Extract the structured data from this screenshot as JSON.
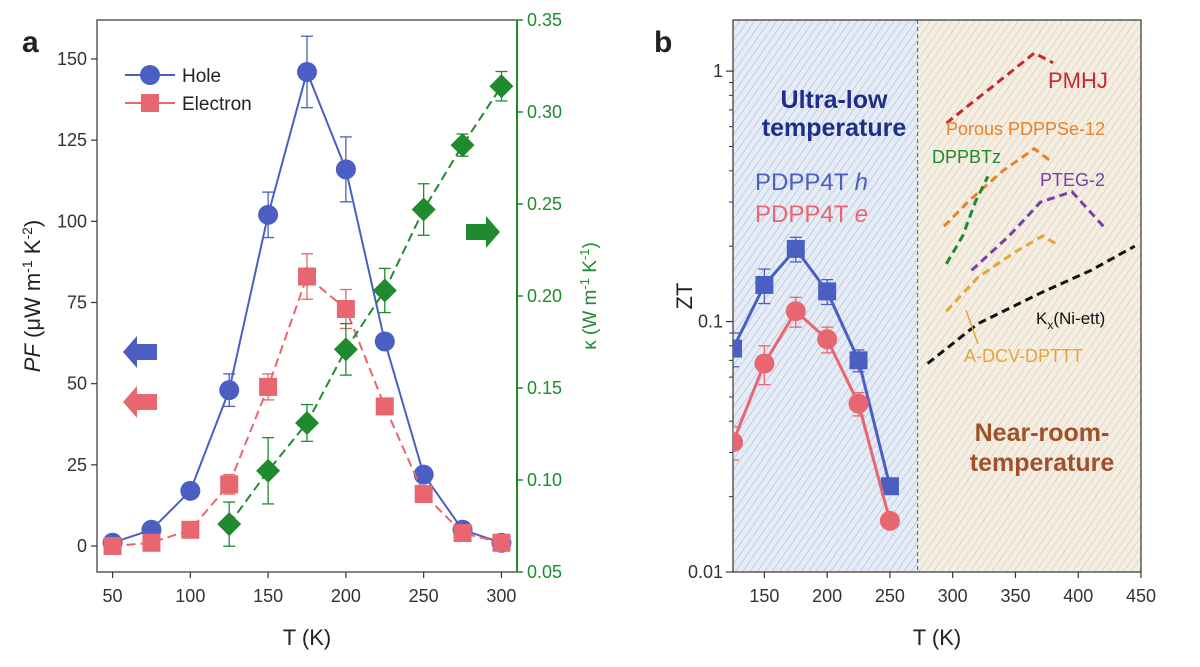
{
  "chart_data": [
    {
      "panel": "a",
      "type": "line",
      "xlabel": "T (K)",
      "xlim": [
        40,
        310
      ],
      "xticks": [
        50,
        100,
        150,
        200,
        250,
        300
      ],
      "y_left": {
        "label_parts": [
          "PF",
          " (μW m",
          "-1",
          " K",
          "-2",
          ")"
        ],
        "ylim": [
          -8,
          162
        ],
        "ticks": [
          0,
          25,
          50,
          75,
          100,
          125,
          150
        ]
      },
      "y_right": {
        "label_parts": [
          "κ (W m",
          "-1",
          " K",
          "-1",
          ")"
        ],
        "ylim": [
          0.05,
          0.35
        ],
        "ticks": [
          "0.05",
          "0.10",
          "0.15",
          "0.20",
          "0.25",
          "0.30",
          "0.35"
        ]
      },
      "series": [
        {
          "name": "Hole",
          "axis": "left",
          "color": "#4A5FC1",
          "marker": "circle",
          "x": [
            50,
            75,
            100,
            125,
            150,
            175,
            200,
            225,
            250,
            275,
            300
          ],
          "y": [
            1,
            5,
            17,
            48,
            102,
            146,
            116,
            63,
            22,
            5,
            1
          ],
          "err": [
            0,
            0,
            0,
            5,
            7,
            11,
            10,
            0,
            0,
            0,
            0
          ]
        },
        {
          "name": "Electron",
          "axis": "left",
          "color": "#E8666F",
          "marker": "square",
          "x": [
            50,
            75,
            100,
            125,
            150,
            175,
            200,
            225,
            250,
            275,
            300
          ],
          "y": [
            0,
            1,
            5,
            19,
            49,
            83,
            73,
            43,
            16,
            4,
            1
          ],
          "err": [
            0,
            0,
            0,
            3,
            4,
            7,
            6,
            0,
            0,
            0,
            0
          ]
        },
        {
          "name": "κ",
          "axis": "right",
          "color": "#1F8A2E",
          "marker": "diamond",
          "x": [
            125,
            150,
            175,
            200,
            225,
            250,
            275,
            300
          ],
          "y": [
            0.076,
            0.105,
            0.131,
            0.171,
            0.203,
            0.247,
            0.282,
            0.314
          ],
          "err": [
            0.012,
            0.018,
            0.01,
            0.014,
            0.012,
            0.014,
            0.006,
            0.008
          ]
        }
      ],
      "legend": {
        "placement": "top-left",
        "entries": [
          "Hole",
          "Electron"
        ]
      },
      "annotations": [
        {
          "kind": "arrow-left",
          "color": "#4A5FC1",
          "points_to": "left axis"
        },
        {
          "kind": "arrow-left",
          "color": "#E8666F",
          "points_to": "left axis"
        },
        {
          "kind": "arrow-right",
          "color": "#1F8A2E",
          "points_to": "right axis"
        }
      ]
    },
    {
      "panel": "b",
      "type": "line",
      "xlabel": "T (K)",
      "ylabel": "ZT",
      "yscale": "log",
      "xlim": [
        125,
        450
      ],
      "ylim": [
        0.01,
        1.6
      ],
      "xticks": [
        150,
        200,
        250,
        300,
        350,
        400,
        450
      ],
      "yticks": [
        {
          "v": 0.01,
          "label": "0.01"
        },
        {
          "v": 0.1,
          "label": "0.1"
        },
        {
          "v": 1,
          "label": "1"
        }
      ],
      "regions": [
        {
          "label_lines": [
            "Ultra-low",
            "temperature"
          ],
          "x_range": [
            125,
            272
          ],
          "color": "#1F2E8A"
        },
        {
          "label_lines": [
            "Near-room-",
            "temperature"
          ],
          "x_range": [
            272,
            450
          ],
          "color": "#A0502A"
        }
      ],
      "series": [
        {
          "name": "PDPP4T h",
          "name_main": "PDPP4T ",
          "name_italic": "h",
          "color": "#4A5FC1",
          "marker": "square",
          "x": [
            125,
            150,
            175,
            200,
            225,
            250
          ],
          "y": [
            0.078,
            0.14,
            0.195,
            0.132,
            0.07,
            0.022
          ],
          "err": [
            0.012,
            0.022,
            0.022,
            0.015,
            0.007,
            0
          ]
        },
        {
          "name": "PDPP4T e",
          "name_main": "PDPP4T ",
          "name_italic": "e",
          "color": "#E8666F",
          "marker": "circle",
          "x": [
            125,
            150,
            175,
            200,
            225,
            250
          ],
          "y": [
            0.033,
            0.068,
            0.11,
            0.085,
            0.047,
            0.016
          ],
          "err": [
            0.005,
            0.012,
            0.015,
            0.01,
            0.005,
            0
          ]
        }
      ],
      "literature": [
        {
          "name": "PMHJ",
          "color": "#C8282E",
          "x": [
            295,
            320,
            345,
            365,
            380
          ],
          "y": [
            0.62,
            0.78,
            0.98,
            1.18,
            1.08
          ]
        },
        {
          "name": "Porous PDPPSe-12",
          "color": "#E8822A",
          "x": [
            293,
            315,
            340,
            365,
            380
          ],
          "y": [
            0.24,
            0.31,
            0.4,
            0.49,
            0.43
          ]
        },
        {
          "name": "DPPBTz",
          "color": "#1F8A2E",
          "x": [
            295,
            308,
            318,
            328
          ],
          "y": [
            0.17,
            0.22,
            0.3,
            0.38
          ]
        },
        {
          "name": "PTEG-2",
          "color": "#7A3FA8",
          "x": [
            315,
            345,
            370,
            395,
            420
          ],
          "y": [
            0.16,
            0.22,
            0.3,
            0.33,
            0.24
          ]
        },
        {
          "name": "A-DCV-DPTTT",
          "color": "#E8A33A",
          "x": [
            295,
            320,
            350,
            372,
            385
          ],
          "y": [
            0.11,
            0.15,
            0.19,
            0.22,
            0.2
          ]
        },
        {
          "name": "Kx(Ni-ett)",
          "name_main": "K",
          "name_sub": "x",
          "name_tail": "(Ni-ett)",
          "color": "#111111",
          "x": [
            280,
            320,
            370,
            410,
            445
          ],
          "y": [
            0.068,
            0.098,
            0.13,
            0.16,
            0.2
          ]
        }
      ]
    }
  ],
  "labels": {
    "panel_a": "a",
    "panel_b": "b"
  }
}
